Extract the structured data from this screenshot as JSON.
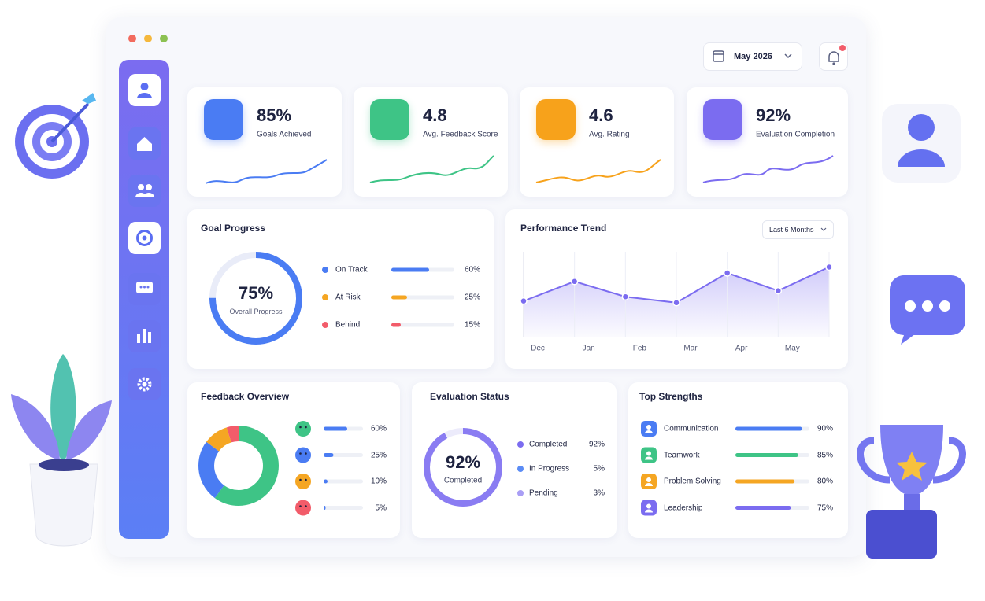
{
  "header": {
    "date": "May 2026"
  },
  "kpis": [
    {
      "value": "85%",
      "caption": "Goals Achieved",
      "color": "#4a7cf3"
    },
    {
      "value": "4.8",
      "caption": "Avg. Feedback Score",
      "color": "#3ec486"
    },
    {
      "value": "4.6",
      "caption": "Avg. Rating",
      "color": "#f7a21b"
    },
    {
      "value": "92%",
      "caption": "Evaluation Completion",
      "color": "#7b6cf0"
    }
  ],
  "goal_progress": {
    "title": "Goal Progress",
    "center": {
      "value": 75,
      "label": "75%"
    },
    "center_caption": "Overall Progress",
    "color": "#4a7cf3",
    "items": [
      {
        "name": "On Track",
        "value": 60,
        "label": "60%",
        "color": "#4a7cf3"
      },
      {
        "name": "At Risk",
        "value": 25,
        "label": "25%",
        "color": "#f5a623"
      },
      {
        "name": "Behind",
        "value": 15,
        "label": "15%",
        "color": "#f25c6a"
      }
    ]
  },
  "performance_trend": {
    "title": "Performance Trend",
    "filter": "Last 6 Months",
    "categories": [
      "Dec",
      "Jan",
      "Feb",
      "Mar",
      "Apr",
      "May",
      null
    ],
    "values": [
      42,
      65,
      47,
      40,
      75,
      54,
      82
    ],
    "ylim": [
      0,
      100
    ],
    "color": "#7b6cf0"
  },
  "feedback_overview": {
    "title": "Feedback Overview",
    "items": [
      {
        "value": 60,
        "label": "60%",
        "color": "#3ec486"
      },
      {
        "value": 25,
        "label": "25%",
        "color": "#4a7cf3"
      },
      {
        "value": 10,
        "label": "10%",
        "color": "#f5a623"
      },
      {
        "value": 5,
        "label": "5%",
        "color": "#f25c6a"
      }
    ]
  },
  "evaluation_status": {
    "title": "Evaluation Status",
    "center": {
      "value": 92,
      "label": "92%"
    },
    "center_caption": "Completed",
    "color": "#8a7cf2",
    "items": [
      {
        "name": "Completed",
        "label": "92%",
        "color": "#7b6cf0"
      },
      {
        "name": "In Progress",
        "label": "5%",
        "color": "#5b8cf5"
      },
      {
        "name": "Pending",
        "label": "3%",
        "color": "#a99ef5"
      }
    ]
  },
  "top_strengths": {
    "title": "Top Strengths",
    "items": [
      {
        "name": "Communication",
        "value": 90,
        "label": "90%",
        "color": "#4a7cf3"
      },
      {
        "name": "Teamwork",
        "value": 85,
        "label": "85%",
        "color": "#3ec486"
      },
      {
        "name": "Problem Solving",
        "value": 80,
        "label": "80%",
        "color": "#f5a623"
      },
      {
        "name": "Leadership",
        "value": 75,
        "label": "75%",
        "color": "#7b6cf0"
      }
    ]
  }
}
